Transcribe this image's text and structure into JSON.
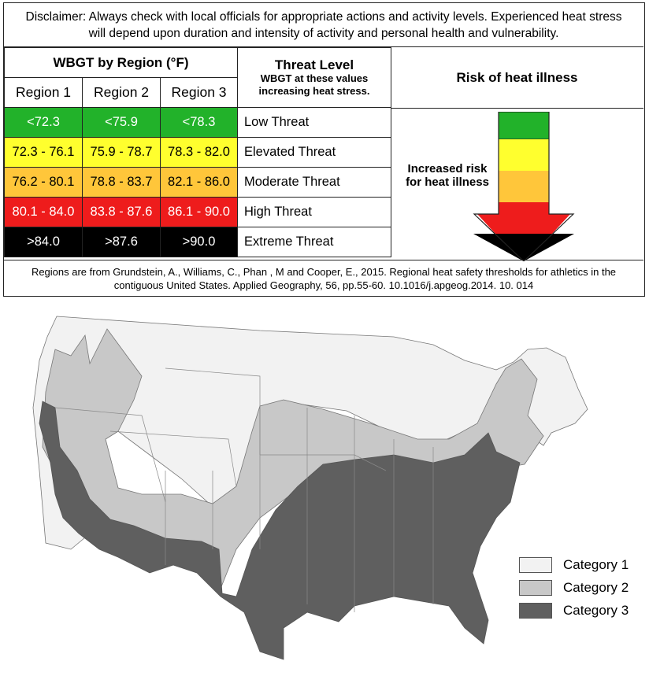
{
  "disclaimer": "Disclaimer: Always check with local officials for appropriate actions and activity levels. Experienced heat stress will depend upon duration and intensity of activity and personal health and vulnerability.",
  "table": {
    "wbgt_header": "WBGT by Region (°F)",
    "threat_header": "Threat Level",
    "threat_subheader": "WBGT at these values increasing heat stress.",
    "regions": [
      "Region 1",
      "Region 2",
      "Region 3"
    ],
    "rows": [
      {
        "values": [
          "<72.3",
          "<75.9",
          "<78.3"
        ],
        "level": "Low Threat",
        "color": "#22b22a",
        "text_color": "#ffffff"
      },
      {
        "values": [
          "72.3 - 76.1",
          "75.9 - 78.7",
          "78.3 - 82.0"
        ],
        "level": "Elevated Threat",
        "color": "#ffff2e",
        "text_color": "#000000"
      },
      {
        "values": [
          "76.2 - 80.1",
          "78.8 - 83.7",
          "82.1 - 86.0"
        ],
        "level": "Moderate Threat",
        "color": "#ffc63a",
        "text_color": "#000000"
      },
      {
        "values": [
          "80.1 - 84.0",
          "83.8 - 87.6",
          "86.1 - 90.0"
        ],
        "level": "High Threat",
        "color": "#ee1c1c",
        "text_color": "#ffffff"
      },
      {
        "values": [
          ">84.0",
          ">87.6",
          ">90.0"
        ],
        "level": "Extreme Threat",
        "color": "#000000",
        "text_color": "#ffffff"
      }
    ]
  },
  "risk": {
    "title": "Risk of heat illness",
    "note": "Increased risk for heat illness",
    "arrow_colors": [
      "#22b22a",
      "#ffff2e",
      "#ffc63a",
      "#ee1c1c",
      "#000000"
    ]
  },
  "citation": "Regions are from Grundstein, A., Williams, C., Phan , M and Cooper, E., 2015. Regional heat safety thresholds for athletics in the contiguous United States. Applied Geography, 56, pp.55-60. 10.1016/j.apgeog.2014. 10. 014",
  "map": {
    "category_colors": {
      "category_1": "#f2f2f2",
      "category_2": "#c8c8c8",
      "category_3": "#5f5f5f"
    },
    "legend": [
      {
        "label": "Category 1",
        "color": "#f2f2f2"
      },
      {
        "label": "Category 2",
        "color": "#c8c8c8"
      },
      {
        "label": "Category 3",
        "color": "#5f5f5f"
      }
    ]
  }
}
